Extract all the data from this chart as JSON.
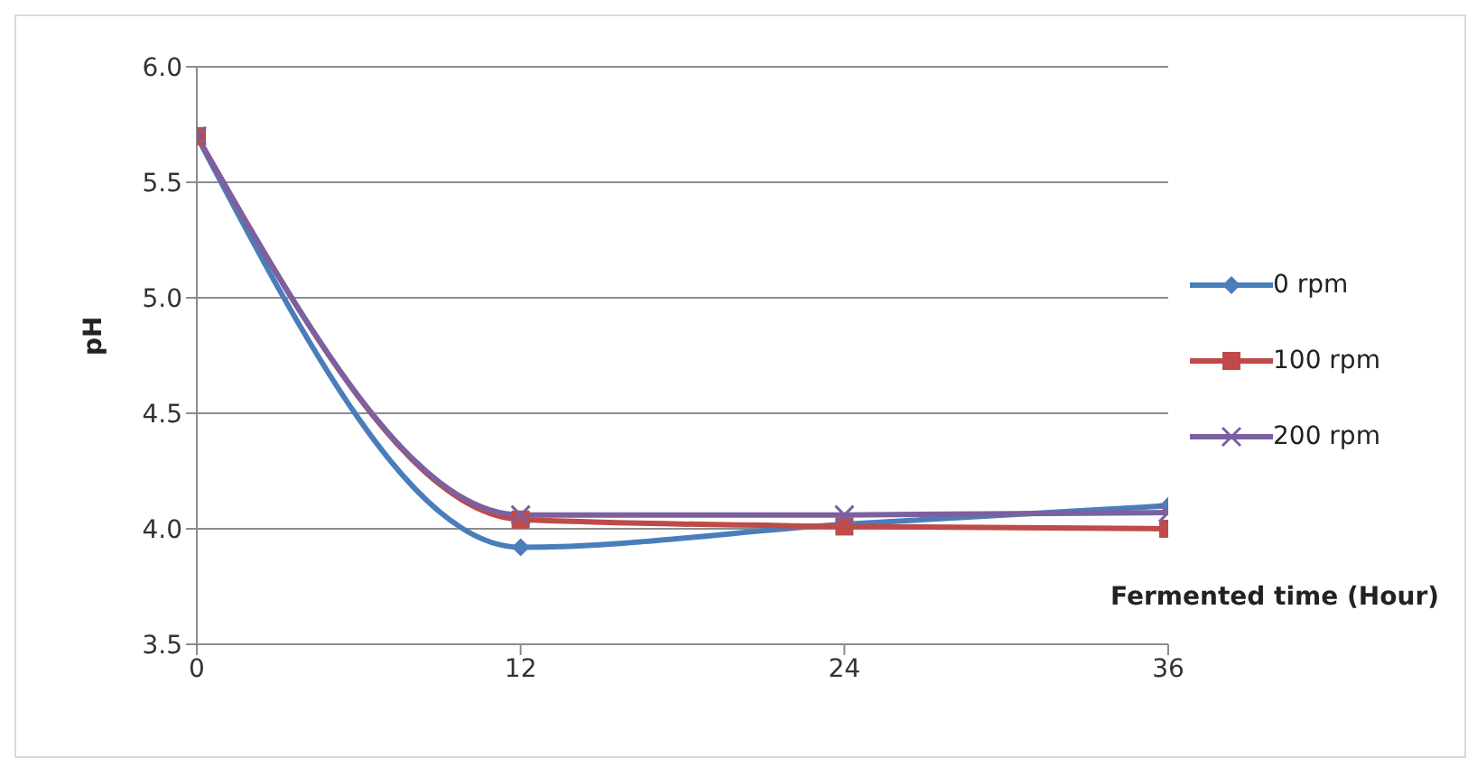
{
  "chart_data": {
    "type": "line",
    "xlabel": "Fermented time (Hour)",
    "ylabel": "pH",
    "x": [
      0,
      12,
      24,
      36
    ],
    "xlim": [
      0,
      36
    ],
    "xticks": [
      0,
      12,
      24,
      36
    ],
    "ylim": [
      3.5,
      6.0
    ],
    "yticks": [
      3.5,
      {
        "value": 4,
        "label": "4.0"
      },
      4.5,
      {
        "value": 5,
        "label": "5.0"
      },
      5.5,
      {
        "value": 6,
        "label": "6.0"
      }
    ],
    "grid": "y",
    "legend": "right",
    "series": [
      {
        "name": "0 rpm",
        "color": "#4a7ebb",
        "marker": "diamond",
        "values": [
          5.7,
          3.92,
          4.02,
          4.1
        ]
      },
      {
        "name": "100 rpm",
        "color": "#be4b48",
        "marker": "square",
        "values": [
          5.7,
          4.04,
          4.01,
          4.0
        ]
      },
      {
        "name": "200 rpm",
        "color": "#7d60a0",
        "marker": "cross",
        "values": [
          5.7,
          4.06,
          4.06,
          4.07
        ]
      }
    ]
  }
}
